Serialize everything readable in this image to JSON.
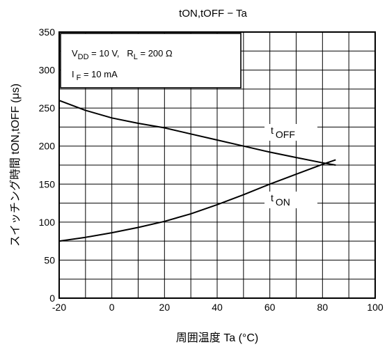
{
  "chart_data": {
    "type": "line",
    "title": "tON,tOFF − Ta",
    "xlabel": "周囲温度  Ta (°C)",
    "ylabel": "スイッチング時間   tON,tOFF (μs)",
    "xlim": [
      -20,
      100
    ],
    "ylim": [
      0,
      350
    ],
    "x_ticks": [
      -20,
      0,
      20,
      40,
      60,
      80,
      100
    ],
    "y_ticks": [
      0,
      50,
      100,
      150,
      200,
      250,
      300,
      350
    ],
    "grid": true,
    "conditions": {
      "line1": {
        "v": "V",
        "v_sub": "DD",
        "v_rest": " = 10 V,   R",
        "r_sub": "L",
        "r_rest": " = 200 Ω"
      },
      "line2": {
        "i": "I",
        "i_sub": "F",
        "i_rest": " = 10 mA"
      }
    },
    "series": [
      {
        "name": "t OFF",
        "label_main": "t",
        "label_sub": "OFF",
        "x": [
          -20,
          -10,
          0,
          10,
          20,
          30,
          40,
          50,
          60,
          70,
          80,
          85
        ],
        "y": [
          260,
          247,
          237,
          230,
          224,
          216,
          208,
          200,
          192,
          185,
          178,
          175
        ]
      },
      {
        "name": "t ON",
        "label_main": "t",
        "label_sub": "ON",
        "x": [
          -20,
          -10,
          0,
          10,
          20,
          30,
          40,
          50,
          60,
          70,
          80,
          85
        ],
        "y": [
          75,
          80,
          86,
          93,
          101,
          111,
          123,
          136,
          150,
          163,
          176,
          182
        ]
      }
    ]
  }
}
